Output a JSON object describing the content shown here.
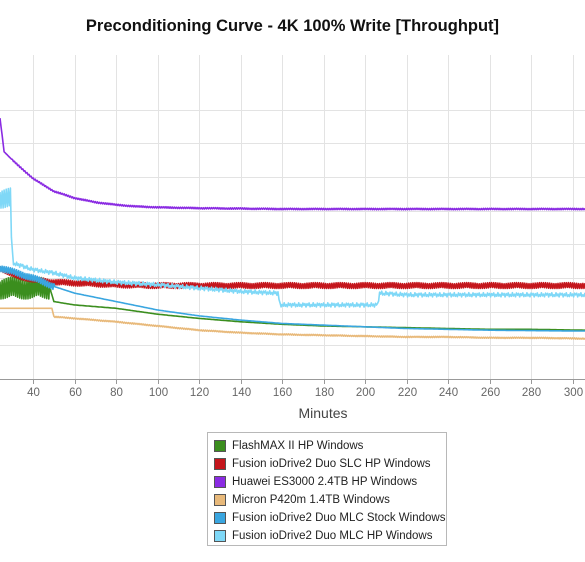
{
  "chart_data": {
    "type": "line",
    "title": "Preconditioning Curve - 4K 100% Write [Throughput]",
    "xlabel": "Minutes",
    "ylabel": "",
    "xlim": [
      24,
      306
    ],
    "ylim": [
      0,
      385000
    ],
    "x_ticks": [
      40,
      60,
      80,
      100,
      120,
      140,
      160,
      180,
      200,
      220,
      240,
      260,
      280,
      300
    ],
    "y_grid": [
      40000,
      80000,
      120000,
      160000,
      200000,
      240000,
      280000,
      320000
    ],
    "grid": true,
    "legend_position": "bottom",
    "series": [
      {
        "name": "FlashMAX II HP Windows",
        "color": "#3b8e1e",
        "x": [
          24,
          30,
          35,
          40,
          45,
          48,
          50,
          60,
          80,
          100,
          120,
          140,
          160,
          180,
          200,
          220,
          240,
          260,
          280,
          306
        ],
        "y": [
          108000,
          108000,
          108000,
          108000,
          108000,
          108000,
          92000,
          88000,
          84000,
          77000,
          72000,
          68000,
          65000,
          63000,
          62000,
          61000,
          60000,
          59000,
          59000,
          58000
        ],
        "osc_range": [
          24,
          48
        ],
        "osc_amp": 13000
      },
      {
        "name": "Fusion ioDrive2 Duo SLC HP Windows",
        "color": "#c4161c",
        "x": [
          24,
          30,
          40,
          50,
          60,
          70,
          80,
          100,
          120,
          140,
          160,
          180,
          200,
          220,
          240,
          260,
          280,
          306
        ],
        "y": [
          132000,
          124000,
          118000,
          115000,
          114000,
          113000,
          112000,
          111000,
          111000,
          111000,
          111000,
          111000,
          111000,
          111000,
          111000,
          111000,
          111000,
          111000
        ],
        "osc_range": [
          24,
          306
        ],
        "osc_amp": 3500
      },
      {
        "name": "Huawei ES3000 2.4TB HP Windows",
        "color": "#8a2be2",
        "x": [
          24,
          25,
          26,
          30,
          40,
          50,
          60,
          70,
          80,
          90,
          100,
          120,
          140,
          160,
          180,
          200,
          220,
          240,
          260,
          280,
          306
        ],
        "y": [
          310000,
          290000,
          270000,
          260000,
          238000,
          223000,
          215000,
          210000,
          207000,
          205000,
          204000,
          203000,
          202500,
          202000,
          202000,
          202000,
          202000,
          202000,
          202000,
          202000,
          202000
        ],
        "osc_range": [
          30,
          306
        ],
        "osc_amp": 900
      },
      {
        "name": "Micron P420m 1.4TB Windows",
        "color": "#e8b97a",
        "x": [
          24,
          49,
          50,
          60,
          80,
          100,
          120,
          140,
          160,
          180,
          200,
          220,
          240,
          260,
          280,
          306
        ],
        "y": [
          84000,
          84000,
          74000,
          72000,
          68000,
          63000,
          58000,
          55000,
          53000,
          52000,
          51000,
          50000,
          50000,
          49000,
          49000,
          48000
        ],
        "osc_range": [
          50,
          306
        ],
        "osc_amp": 700
      },
      {
        "name": "Fusion ioDrive2 Duo MLC Stock Windows",
        "color": "#3aa6e0",
        "x": [
          24,
          40,
          50,
          60,
          80,
          100,
          120,
          140,
          160,
          180,
          200,
          220,
          240,
          260,
          280,
          306
        ],
        "y": [
          132000,
          120000,
          110000,
          102000,
          92000,
          82000,
          75000,
          70000,
          66000,
          64000,
          62000,
          60000,
          59000,
          58000,
          57500,
          57000
        ],
        "osc_range": [
          24,
          50
        ],
        "osc_amp": 4000
      },
      {
        "name": "Fusion ioDrive2 Duo MLC HP Windows",
        "color": "#7fd8f7",
        "x": [
          24,
          29,
          30,
          40,
          50,
          60,
          80,
          100,
          120,
          140,
          158,
          159,
          206,
          207,
          220,
          240,
          260,
          280,
          306
        ],
        "y": [
          215000,
          215000,
          138000,
          130000,
          126000,
          120000,
          115000,
          112000,
          108000,
          104000,
          102000,
          88000,
          88000,
          102000,
          100000,
          100000,
          100000,
          100000,
          100000
        ],
        "osc_range": [
          24,
          30
        ],
        "osc_amp": 12000,
        "noise_range": [
          30,
          306
        ],
        "noise_amp": 2500
      }
    ]
  }
}
